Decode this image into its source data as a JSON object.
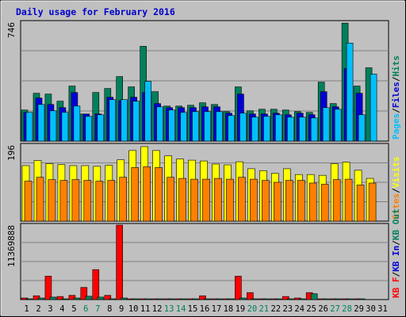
{
  "title": "Daily usage for February 2016",
  "colors": {
    "background": "#c0c0c0",
    "plot_bg": "#c0c0c0",
    "border": "#000000",
    "hits": "#00805c",
    "files": "#0000d8",
    "pages": "#00c0ff",
    "visits": "#ffff00",
    "sites": "#ff8000",
    "kb_f": "#ff0000",
    "kb_in": "#0000d8",
    "kb_out": "#00805c",
    "weekday": "#000000",
    "weekend": "#00805c"
  },
  "chart_data": [
    {
      "type": "bar",
      "panel": "top",
      "ymax_label": "746",
      "ylim": [
        0,
        746
      ],
      "categories": [
        1,
        2,
        3,
        4,
        5,
        6,
        7,
        8,
        9,
        10,
        11,
        12,
        13,
        14,
        15,
        16,
        17,
        18,
        19,
        20,
        21,
        22,
        23,
        24,
        25,
        26,
        27,
        28,
        29,
        30,
        31
      ],
      "series": [
        {
          "name": "Hits",
          "values": [
            195,
            300,
            295,
            250,
            345,
            170,
            305,
            330,
            405,
            340,
            595,
            310,
            220,
            220,
            225,
            240,
            230,
            185,
            340,
            190,
            200,
            200,
            195,
            185,
            180,
            370,
            235,
            740,
            345,
            460,
            0
          ]
        },
        {
          "name": "Files",
          "values": [
            180,
            270,
            230,
            210,
            305,
            170,
            170,
            275,
            255,
            275,
            305,
            235,
            210,
            210,
            210,
            215,
            215,
            175,
            295,
            170,
            170,
            175,
            165,
            175,
            165,
            310,
            215,
            455,
            300,
            0,
            0
          ]
        },
        {
          "name": "Pages",
          "values": [
            180,
            230,
            190,
            180,
            220,
            155,
            165,
            260,
            260,
            250,
            375,
            215,
            195,
            180,
            185,
            185,
            185,
            160,
            175,
            150,
            155,
            165,
            150,
            150,
            145,
            210,
            200,
            615,
            165,
            420,
            0
          ]
        }
      ],
      "legend": [
        "Pages",
        "Files",
        "Hits"
      ]
    },
    {
      "type": "bar",
      "panel": "middle",
      "ymax_label": "196",
      "ylim": [
        0,
        196
      ],
      "categories": [
        1,
        2,
        3,
        4,
        5,
        6,
        7,
        8,
        9,
        10,
        11,
        12,
        13,
        14,
        15,
        16,
        17,
        18,
        19,
        20,
        21,
        22,
        23,
        24,
        25,
        26,
        27,
        28,
        29,
        30,
        31
      ],
      "series": [
        {
          "name": "Visits",
          "values": [
            143,
            156,
            148,
            146,
            143,
            143,
            141,
            144,
            158,
            182,
            192,
            182,
            168,
            160,
            157,
            155,
            147,
            145,
            153,
            135,
            130,
            123,
            135,
            120,
            120,
            118,
            148,
            152,
            131,
            110,
            0
          ]
        },
        {
          "name": "Sites",
          "values": [
            103,
            113,
            107,
            105,
            107,
            105,
            103,
            105,
            113,
            138,
            140,
            138,
            113,
            110,
            108,
            108,
            110,
            108,
            113,
            108,
            105,
            100,
            105,
            105,
            98,
            95,
            107,
            108,
            93,
            98,
            0
          ]
        }
      ],
      "legend": [
        "Sites",
        "Visits"
      ]
    },
    {
      "type": "bar",
      "panel": "bottom",
      "ymax_label": "11369888",
      "ylim": [
        0,
        11369888
      ],
      "categories": [
        1,
        2,
        3,
        4,
        5,
        6,
        7,
        8,
        9,
        10,
        11,
        12,
        13,
        14,
        15,
        16,
        17,
        18,
        19,
        20,
        21,
        22,
        23,
        24,
        25,
        26,
        27,
        28,
        29,
        30,
        31
      ],
      "series": [
        {
          "name": "KB F",
          "values": [
            240000,
            580000,
            3570000,
            470000,
            640000,
            1850000,
            4570000,
            640000,
            11369888,
            100000,
            100000,
            100000,
            100000,
            100000,
            100000,
            580000,
            100000,
            100000,
            3570000,
            1070000,
            100000,
            100000,
            470000,
            240000,
            1070000,
            100000,
            100000,
            100000,
            100000,
            0,
            0
          ]
        },
        {
          "name": "KB In",
          "values": [
            0,
            0,
            0,
            0,
            0,
            0,
            0,
            0,
            0,
            0,
            0,
            0,
            0,
            0,
            0,
            0,
            0,
            0,
            0,
            0,
            0,
            0,
            0,
            0,
            0,
            0,
            0,
            0,
            0,
            0,
            0
          ]
        },
        {
          "name": "KB Out",
          "values": [
            100000,
            240000,
            380000,
            100000,
            240000,
            510000,
            380000,
            100000,
            240000,
            100000,
            100000,
            100000,
            100000,
            100000,
            100000,
            100000,
            100000,
            100000,
            240000,
            100000,
            100000,
            100000,
            100000,
            100000,
            890000,
            100000,
            100000,
            100000,
            100000,
            0,
            0
          ]
        }
      ],
      "legend": [
        "KB F",
        "KB In",
        "KB Out"
      ]
    }
  ],
  "x_labels": [
    "1",
    "2",
    "3",
    "4",
    "5",
    "6",
    "7",
    "8",
    "9",
    "10",
    "11",
    "12",
    "13",
    "14",
    "15",
    "16",
    "17",
    "18",
    "19",
    "20",
    "21",
    "22",
    "23",
    "24",
    "25",
    "26",
    "27",
    "28",
    "29",
    "30",
    "31"
  ],
  "weekend_days": [
    6,
    7,
    13,
    14,
    20,
    21,
    27,
    28
  ]
}
